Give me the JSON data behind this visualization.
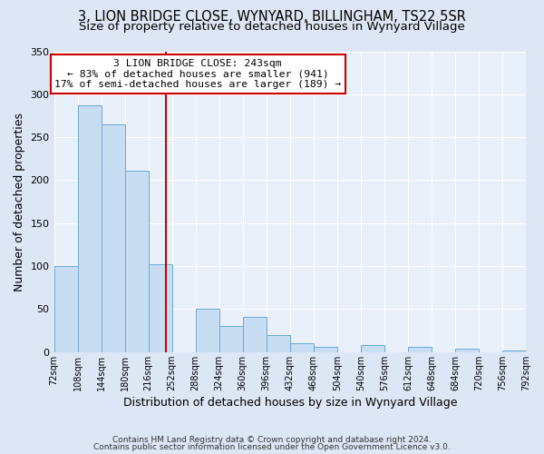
{
  "title": "3, LION BRIDGE CLOSE, WYNYARD, BILLINGHAM, TS22 5SR",
  "subtitle": "Size of property relative to detached houses in Wynyard Village",
  "xlabel": "Distribution of detached houses by size in Wynyard Village",
  "ylabel": "Number of detached properties",
  "bin_edges": [
    72,
    108,
    144,
    180,
    216,
    252,
    288,
    324,
    360,
    396,
    432,
    468,
    504,
    540,
    576,
    612,
    648,
    684,
    720,
    756,
    792
  ],
  "bar_heights": [
    100,
    287,
    265,
    211,
    102,
    0,
    50,
    30,
    41,
    20,
    10,
    6,
    0,
    8,
    0,
    6,
    0,
    4,
    0,
    2
  ],
  "bar_color": "#c8ddf2",
  "bar_edge_color": "#6aaad4",
  "vline_x": 243,
  "vline_color": "#cc0000",
  "annotation_title": "3 LION BRIDGE CLOSE: 243sqm",
  "annotation_line1": "← 83% of detached houses are smaller (941)",
  "annotation_line2": "17% of semi-detached houses are larger (189) →",
  "annotation_box_color": "#ffffff",
  "annotation_border_color": "#cc0000",
  "ylim": [
    0,
    350
  ],
  "yticks": [
    0,
    50,
    100,
    150,
    200,
    250,
    300,
    350
  ],
  "footer1": "Contains HM Land Registry data © Crown copyright and database right 2024.",
  "footer2": "Contains public sector information licensed under the Open Government Licence v3.0.",
  "bg_color": "#dce6f5",
  "plot_bg_color": "#e8f0fa",
  "title_fontsize": 10.5,
  "subtitle_fontsize": 9.5,
  "grid_color": "#ffffff"
}
